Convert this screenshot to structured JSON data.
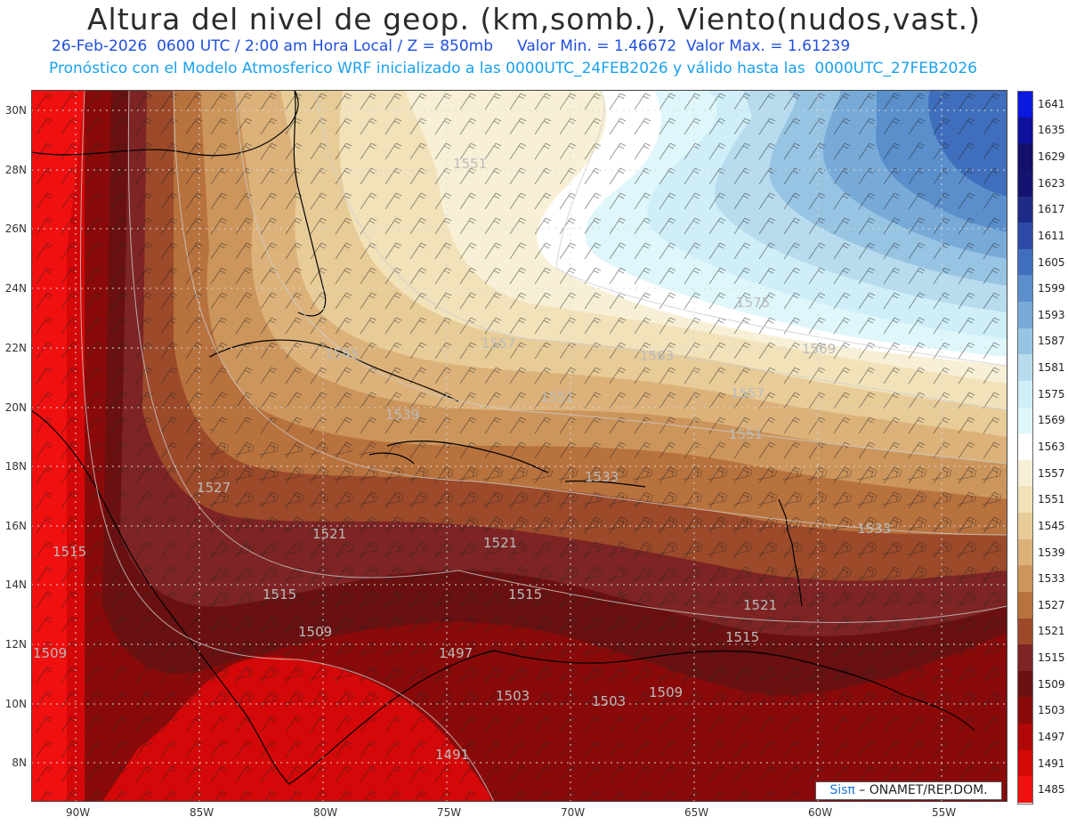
{
  "title": "Altura del nivel de geop. (km,somb.), Viento(nudos,vast.)",
  "subtitle1": "26-Feb-2026  0600 UTC / 2:00 am Hora Local / Z = 850mb     Valor Min. = 1.46672  Valor Max. = 1.61239",
  "subtitle2": "Pronóstico con el Modelo Atmosferico WRF inicializado a las 0000UTC_24FEB2026 y válido hasta las  0000UTC_27FEB2026",
  "lat_labels": [
    "30N",
    "28N",
    "26N",
    "24N",
    "22N",
    "20N",
    "18N",
    "16N",
    "14N",
    "12N",
    "10N",
    "8N"
  ],
  "lon_labels": [
    "90W",
    "85W",
    "80W",
    "75W",
    "70W",
    "65W",
    "60W",
    "55W"
  ],
  "colorbar": {
    "labels": [
      "1641",
      "1635",
      "1629",
      "1623",
      "1617",
      "1611",
      "1605",
      "1599",
      "1593",
      "1587",
      "1581",
      "1575",
      "1569",
      "1563",
      "1557",
      "1551",
      "1545",
      "1539",
      "1533",
      "1527",
      "1521",
      "1515",
      "1509",
      "1503",
      "1497",
      "1491",
      "1485"
    ],
    "colors": [
      "#0a18e0",
      "#0f109c",
      "#14106a",
      "#141470",
      "#1e2c88",
      "#2e4aa8",
      "#3f6ebc",
      "#5a8fcc",
      "#78aad8",
      "#98c4e4",
      "#b8dcee",
      "#cfeef8",
      "#dff6fb",
      "#ffffff",
      "#f8f0d6",
      "#f2e2ba",
      "#e8cc98",
      "#dcb27a",
      "#cc955c",
      "#b8723e",
      "#9c4a2a",
      "#7e2424",
      "#6a1010",
      "#8a0a0a",
      "#b00808",
      "#d40808",
      "#f01010"
    ]
  },
  "contour_labels": [
    {
      "text": "1551"
    },
    {
      "text": "1575"
    },
    {
      "text": "1569"
    },
    {
      "text": "1563"
    },
    {
      "text": "1557"
    },
    {
      "text": "1551"
    },
    {
      "text": "1557"
    },
    {
      "text": "1545"
    },
    {
      "text": "1551"
    },
    {
      "text": "1539"
    },
    {
      "text": "1533"
    },
    {
      "text": "1527"
    },
    {
      "text": "1521"
    },
    {
      "text": "1521"
    },
    {
      "text": "1515"
    },
    {
      "text": "1515"
    },
    {
      "text": "1515"
    },
    {
      "text": "1509"
    },
    {
      "text": "1509"
    },
    {
      "text": "1497"
    },
    {
      "text": "1503"
    },
    {
      "text": "1503"
    },
    {
      "text": "1509"
    },
    {
      "text": "1491"
    },
    {
      "text": "1533"
    },
    {
      "text": "1515"
    },
    {
      "text": "1521"
    }
  ],
  "credit": {
    "brand": "Sisπ",
    "text": "ONAMET/REP.DOM."
  }
}
